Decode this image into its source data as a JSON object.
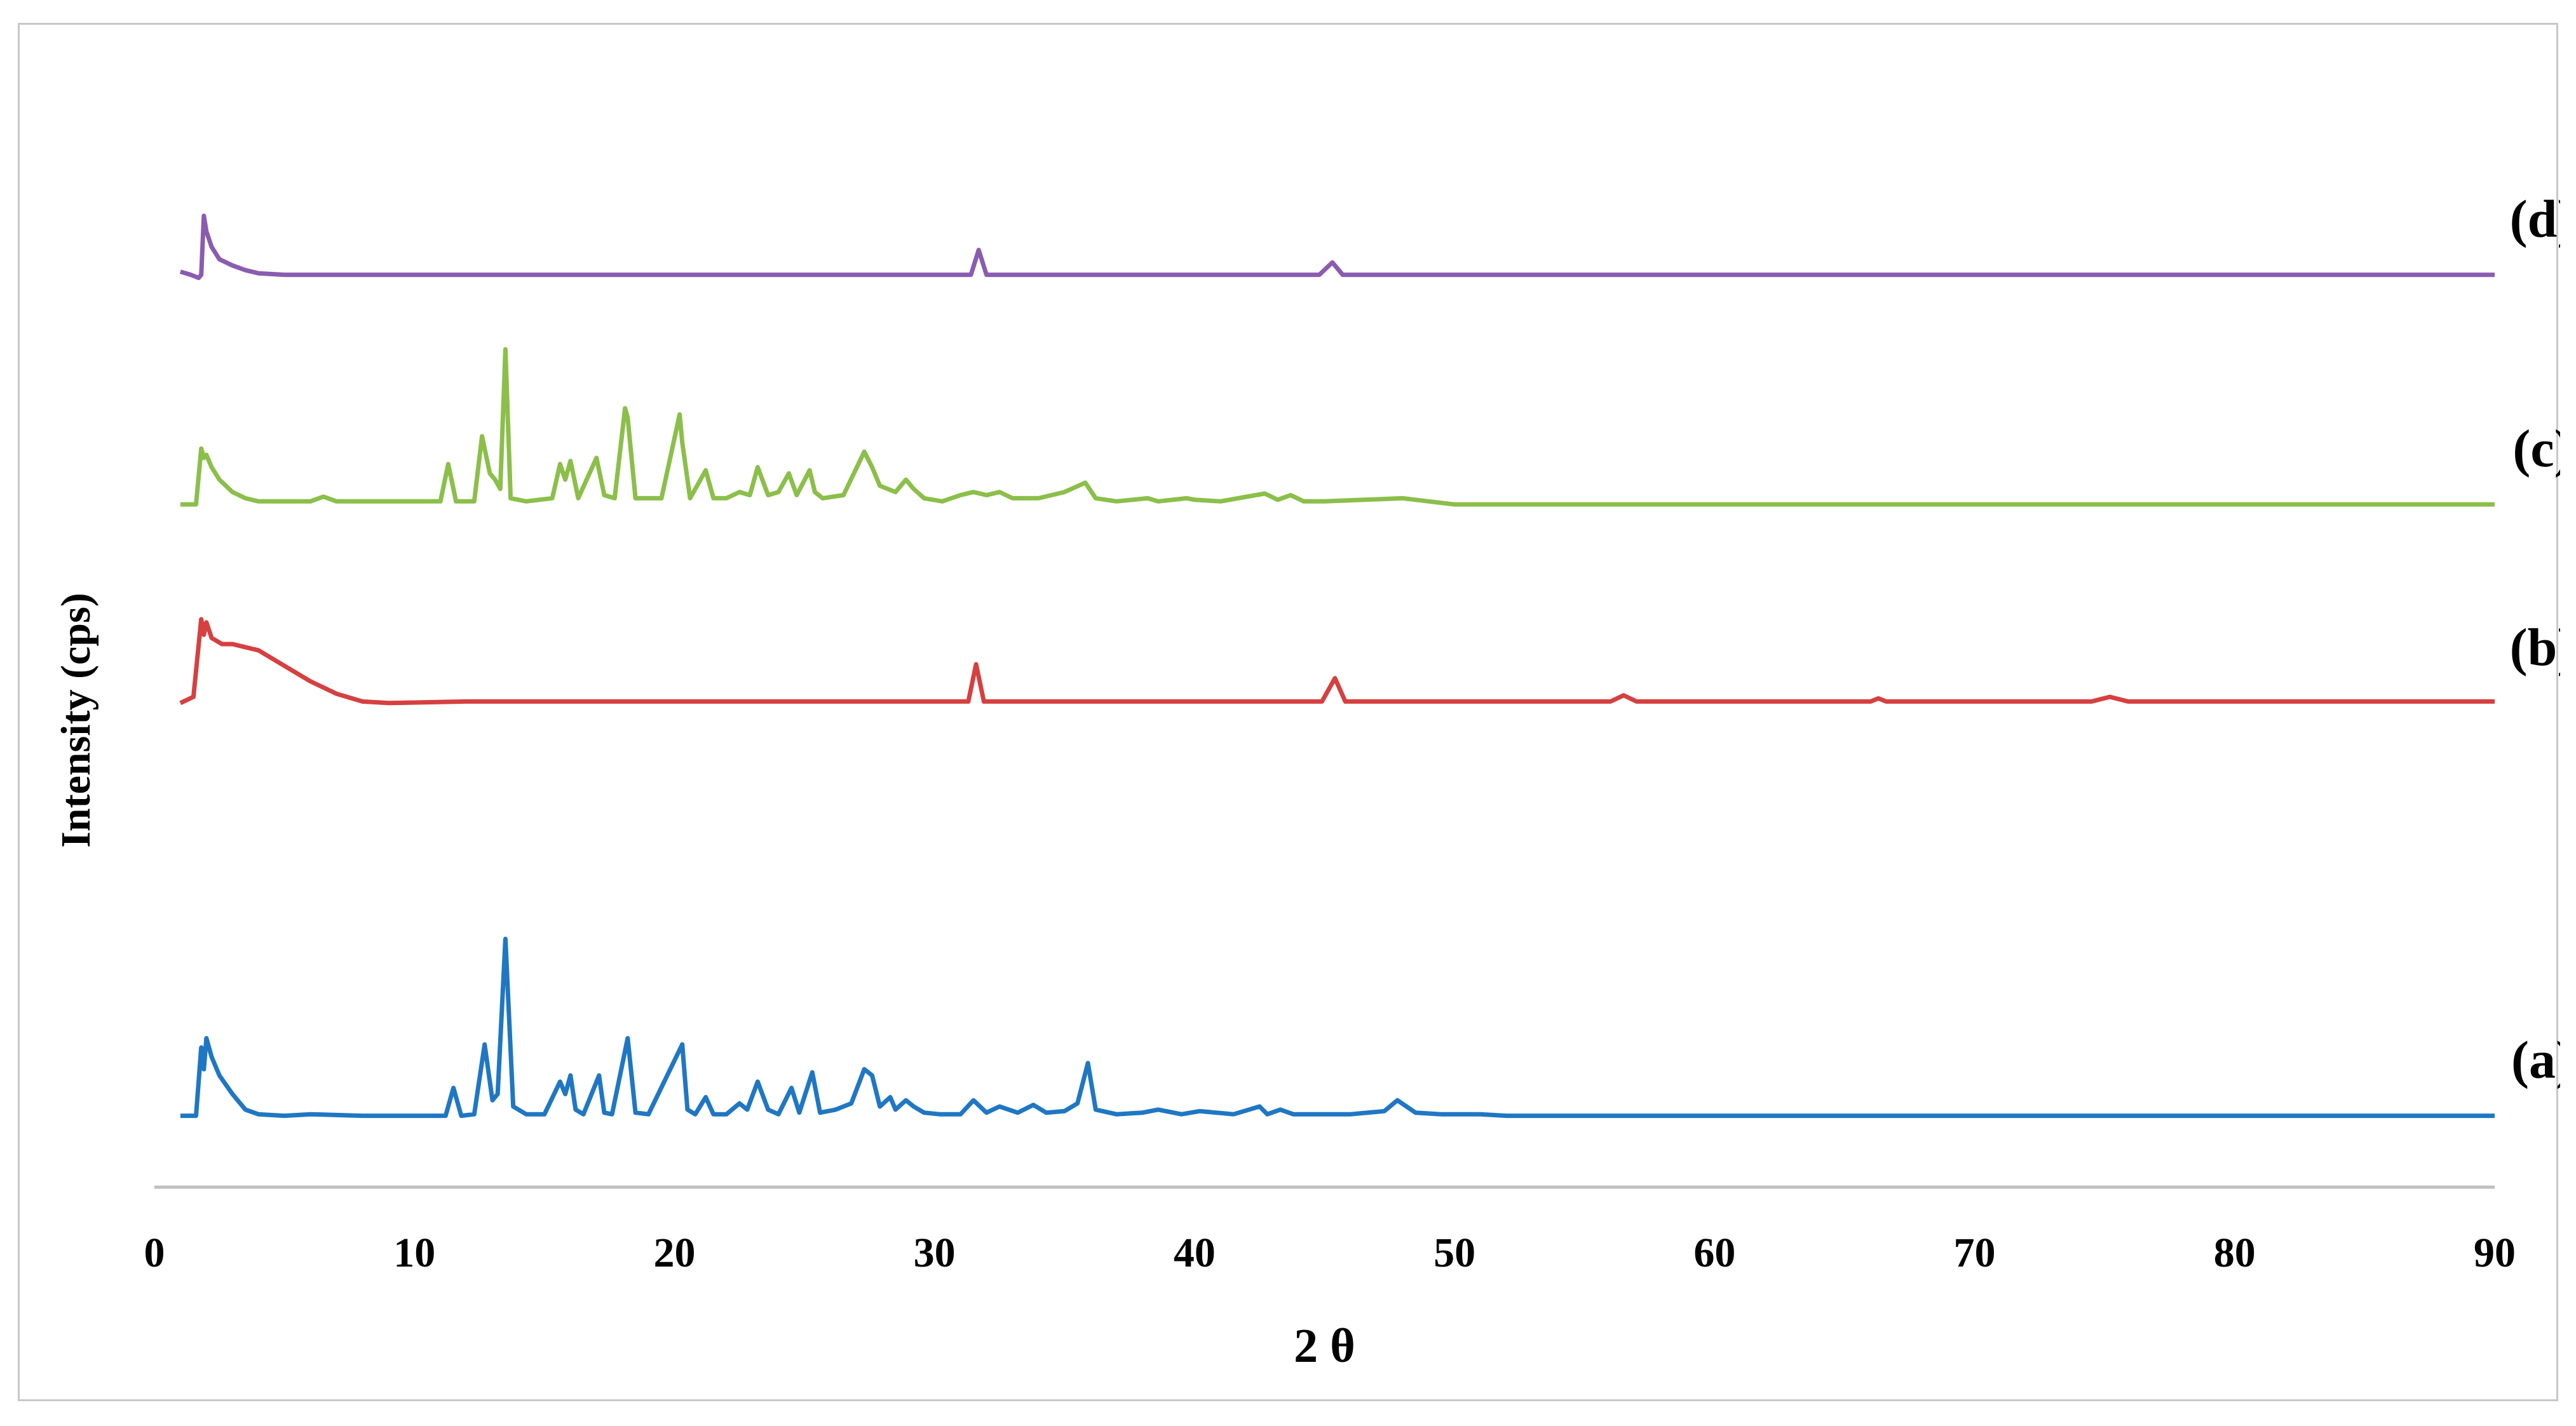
{
  "chart_data": {
    "type": "line",
    "title": "",
    "xlabel": "2 θ",
    "ylabel": "Intensity (cps)",
    "xlim": [
      0,
      90
    ],
    "xticks": [
      "0",
      "10",
      "20",
      "30",
      "40",
      "50",
      "60",
      "70",
      "80",
      "90"
    ],
    "grid": false,
    "legend": "none",
    "series": [
      {
        "label": "(a)",
        "color": "#1f77c4",
        "baseline": 0.03,
        "x": [
          1.0,
          1.6,
          1.8,
          1.9,
          2.0,
          2.2,
          2.5,
          3.0,
          3.5,
          4.0,
          5.0,
          6.0,
          8.0,
          10.0,
          11.2,
          11.5,
          11.8,
          12.3,
          12.7,
          13.0,
          13.2,
          13.5,
          13.8,
          14.3,
          15.0,
          15.6,
          15.8,
          16.0,
          16.2,
          16.5,
          17.1,
          17.3,
          17.6,
          18.2,
          18.5,
          19.0,
          20.3,
          20.5,
          20.8,
          21.2,
          21.5,
          22.0,
          22.5,
          22.8,
          23.2,
          23.6,
          24.0,
          24.5,
          24.8,
          25.3,
          25.6,
          26.2,
          26.8,
          27.3,
          27.6,
          27.9,
          28.3,
          28.5,
          28.9,
          29.2,
          29.6,
          30.2,
          31.0,
          31.5,
          32.0,
          32.5,
          33.2,
          33.8,
          34.3,
          35.0,
          35.5,
          35.9,
          36.2,
          37.0,
          38.0,
          38.6,
          39.5,
          40.2,
          41.5,
          42.5,
          42.8,
          43.3,
          43.8,
          44.5,
          46.0,
          47.3,
          47.8,
          48.5,
          49.5,
          51.0,
          52.0,
          55.0,
          58.0,
          60.0,
          70.0,
          80.0,
          90.0
        ],
        "y": [
          0.03,
          0.03,
          0.25,
          0.18,
          0.28,
          0.22,
          0.16,
          0.1,
          0.05,
          0.035,
          0.03,
          0.035,
          0.03,
          0.03,
          0.03,
          0.12,
          0.03,
          0.035,
          0.26,
          0.08,
          0.1,
          0.6,
          0.06,
          0.035,
          0.035,
          0.14,
          0.1,
          0.16,
          0.05,
          0.035,
          0.16,
          0.04,
          0.035,
          0.28,
          0.04,
          0.035,
          0.26,
          0.05,
          0.035,
          0.09,
          0.035,
          0.035,
          0.07,
          0.05,
          0.14,
          0.05,
          0.035,
          0.12,
          0.04,
          0.17,
          0.04,
          0.05,
          0.07,
          0.18,
          0.16,
          0.06,
          0.09,
          0.05,
          0.08,
          0.06,
          0.04,
          0.035,
          0.035,
          0.08,
          0.04,
          0.06,
          0.04,
          0.065,
          0.04,
          0.045,
          0.07,
          0.2,
          0.05,
          0.035,
          0.04,
          0.05,
          0.035,
          0.045,
          0.035,
          0.06,
          0.035,
          0.05,
          0.035,
          0.035,
          0.035,
          0.045,
          0.08,
          0.04,
          0.035,
          0.035,
          0.03,
          0.03,
          0.03,
          0.03,
          0.03,
          0.03,
          0.03
        ]
      },
      {
        "label": "(b)",
        "color": "#d64040",
        "baseline": 1.36,
        "x": [
          1.0,
          1.5,
          1.8,
          1.9,
          2.0,
          2.2,
          2.6,
          3.0,
          4.0,
          5.0,
          6.0,
          7.0,
          8.0,
          9.0,
          12.0,
          20.0,
          30.0,
          31.3,
          31.6,
          31.9,
          32.5,
          44.9,
          45.4,
          45.8,
          46.5,
          56.0,
          56.5,
          57.0,
          66.0,
          66.3,
          66.6,
          74.5,
          75.2,
          75.9,
          90.0
        ],
        "y": [
          1.36,
          1.38,
          1.63,
          1.58,
          1.62,
          1.57,
          1.55,
          1.55,
          1.53,
          1.48,
          1.43,
          1.39,
          1.365,
          1.36,
          1.365,
          1.365,
          1.365,
          1.365,
          1.485,
          1.365,
          1.365,
          1.365,
          1.44,
          1.365,
          1.365,
          1.365,
          1.385,
          1.365,
          1.365,
          1.375,
          1.365,
          1.365,
          1.38,
          1.365,
          1.365
        ]
      },
      {
        "label": "(c)",
        "color": "#8bbf4a",
        "baseline": 2.0,
        "x": [
          1.0,
          1.6,
          1.8,
          1.9,
          2.0,
          2.2,
          2.5,
          3.0,
          3.5,
          4.0,
          5.0,
          6.0,
          6.5,
          7.0,
          8.0,
          11.0,
          11.3,
          11.6,
          12.3,
          12.6,
          12.9,
          13.1,
          13.3,
          13.5,
          13.7,
          14.3,
          15.3,
          15.6,
          15.8,
          16.0,
          16.3,
          17.0,
          17.3,
          17.7,
          18.1,
          18.2,
          18.5,
          19.5,
          20.2,
          20.3,
          20.6,
          21.2,
          21.5,
          22.0,
          22.5,
          22.9,
          23.2,
          23.6,
          24.0,
          24.4,
          24.7,
          25.2,
          25.4,
          25.7,
          26.5,
          27.3,
          27.6,
          27.9,
          28.2,
          28.5,
          28.9,
          29.2,
          29.6,
          30.3,
          31.0,
          31.5,
          32.0,
          32.5,
          33.0,
          34.0,
          35.0,
          35.8,
          36.2,
          37.0,
          38.2,
          38.6,
          39.7,
          40.0,
          41.0,
          42.7,
          43.2,
          43.7,
          44.2,
          45.0,
          48.0,
          49.0,
          50.0,
          55.0,
          60.0,
          70.0,
          80.0,
          90.0
        ],
        "y": [
          2.0,
          2.0,
          2.18,
          2.15,
          2.16,
          2.12,
          2.08,
          2.04,
          2.02,
          2.01,
          2.01,
          2.01,
          2.025,
          2.01,
          2.01,
          2.01,
          2.13,
          2.01,
          2.01,
          2.22,
          2.1,
          2.08,
          2.05,
          2.5,
          2.02,
          2.01,
          2.02,
          2.13,
          2.08,
          2.14,
          2.02,
          2.15,
          2.03,
          2.02,
          2.31,
          2.28,
          2.02,
          2.02,
          2.29,
          2.2,
          2.02,
          2.11,
          2.02,
          2.02,
          2.04,
          2.03,
          2.12,
          2.03,
          2.04,
          2.1,
          2.03,
          2.11,
          2.04,
          2.02,
          2.03,
          2.17,
          2.12,
          2.06,
          2.05,
          2.04,
          2.08,
          2.05,
          2.02,
          2.01,
          2.03,
          2.04,
          2.03,
          2.04,
          2.02,
          2.02,
          2.04,
          2.07,
          2.02,
          2.01,
          2.02,
          2.01,
          2.02,
          2.015,
          2.01,
          2.035,
          2.015,
          2.03,
          2.01,
          2.01,
          2.02,
          2.01,
          2.0,
          2.0,
          2.0,
          2.0,
          2.0,
          2.0
        ]
      },
      {
        "label": "(d)",
        "color": "#8a5cb0",
        "baseline": 2.74,
        "x": [
          1.0,
          1.4,
          1.7,
          1.8,
          1.9,
          2.0,
          2.2,
          2.5,
          3.0,
          3.5,
          4.0,
          5.0,
          6.0,
          8.0,
          10.0,
          20.0,
          30.0,
          31.4,
          31.7,
          32.0,
          32.5,
          44.8,
          45.3,
          45.7,
          46.2,
          56.0,
          90.0
        ],
        "y": [
          2.75,
          2.74,
          2.73,
          2.74,
          2.93,
          2.88,
          2.83,
          2.79,
          2.77,
          2.755,
          2.745,
          2.74,
          2.74,
          2.74,
          2.74,
          2.74,
          2.74,
          2.74,
          2.82,
          2.74,
          2.74,
          2.74,
          2.78,
          2.74,
          2.74,
          2.74,
          2.74
        ]
      }
    ],
    "ylim": [
      -0.2,
      3.3
    ]
  }
}
